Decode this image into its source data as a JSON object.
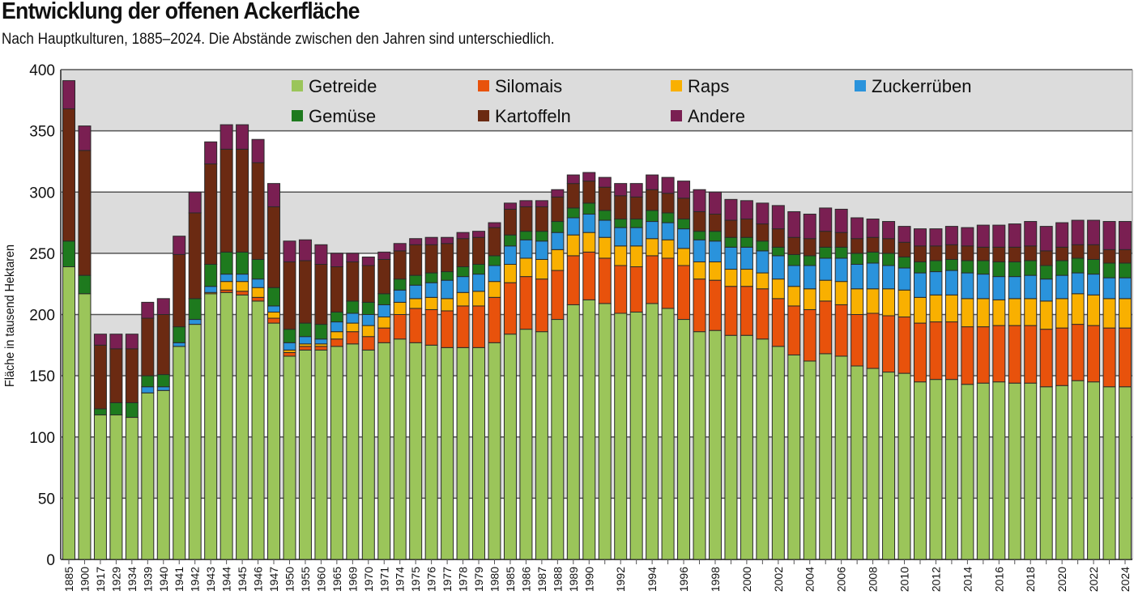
{
  "title": "Entwicklung der offenen Ackerfläche",
  "subtitle": "Nach Hauptkulturen, 1885–2024. Die Abstände zwischen den Jahren sind unterschiedlich.",
  "chart_data": {
    "type": "bar",
    "stacked": true,
    "ylabel": "Fläche in tausend Hektaren",
    "xlabel": "",
    "ylim": [
      0,
      400
    ],
    "yticks": [
      "0",
      "50",
      "100",
      "150",
      "200",
      "250",
      "300",
      "350",
      "400"
    ],
    "grid": true,
    "legend_position": "top-inside",
    "categories": [
      "1885",
      "1900",
      "1917",
      "1929",
      "1934",
      "1939",
      "1940",
      "1941",
      "1942",
      "1943",
      "1944",
      "1945",
      "1946",
      "1947",
      "1950",
      "1955",
      "1960",
      "1965",
      "1969",
      "1970",
      "1971",
      "1974",
      "1975",
      "1976",
      "1977",
      "1978",
      "1979",
      "1980",
      "1985",
      "1986",
      "1987",
      "1988",
      "1989",
      "1990",
      "",
      "1992",
      "",
      "1994",
      "",
      "1996",
      "",
      "1998",
      "",
      "2000",
      "",
      "2002",
      "",
      "2004",
      "",
      "2006",
      "",
      "2008",
      "",
      "2010",
      "",
      "2012",
      "",
      "2014",
      "",
      "2016",
      "",
      "2018",
      "",
      "2020",
      "",
      "2022",
      "",
      "2024"
    ],
    "series": [
      {
        "name": "Getreide",
        "color": "#9bc55a",
        "values": [
          239,
          217,
          118,
          118,
          116,
          136,
          138,
          174,
          192,
          217,
          218,
          216,
          211,
          193,
          166,
          171,
          171,
          174,
          176,
          171,
          177,
          180,
          177,
          175,
          173,
          173,
          173,
          177,
          184,
          188,
          186,
          196,
          208,
          212,
          209,
          201,
          202,
          209,
          205,
          196,
          186,
          187,
          183,
          183,
          180,
          174,
          167,
          162,
          168,
          166,
          158,
          156,
          153,
          152,
          145,
          147,
          147,
          143,
          144,
          145,
          144,
          144,
          141,
          142,
          146,
          145,
          141,
          141
        ]
      },
      {
        "name": "Silomais",
        "color": "#e8520c",
        "values": [
          0,
          0,
          0,
          0,
          0,
          0,
          0,
          0,
          0,
          0,
          2,
          3,
          3,
          4,
          3,
          3,
          3,
          6,
          10,
          11,
          12,
          20,
          28,
          29,
          30,
          34,
          34,
          37,
          42,
          43,
          43,
          40,
          40,
          39,
          37,
          39,
          37,
          39,
          41,
          44,
          43,
          41,
          40,
          40,
          41,
          39,
          40,
          42,
          43,
          42,
          42,
          45,
          46,
          46,
          48,
          47,
          47,
          47,
          46,
          46,
          47,
          47,
          47,
          47,
          46,
          46,
          48,
          48
        ]
      },
      {
        "name": "Raps",
        "color": "#f9b000",
        "values": [
          0,
          0,
          0,
          0,
          0,
          0,
          0,
          0,
          0,
          1,
          7,
          8,
          8,
          5,
          2,
          2,
          2,
          6,
          7,
          9,
          9,
          10,
          8,
          10,
          10,
          11,
          12,
          13,
          15,
          15,
          16,
          17,
          17,
          16,
          17,
          16,
          17,
          14,
          15,
          14,
          14,
          15,
          14,
          14,
          13,
          16,
          16,
          17,
          17,
          19,
          21,
          20,
          22,
          22,
          21,
          22,
          22,
          23,
          23,
          21,
          22,
          22,
          23,
          24,
          25,
          25,
          24,
          24
        ]
      },
      {
        "name": "Zuckerrüben",
        "color": "#2a93dc",
        "values": [
          0,
          0,
          0,
          0,
          0,
          5,
          3,
          3,
          4,
          5,
          6,
          6,
          7,
          5,
          6,
          6,
          4,
          8,
          8,
          9,
          10,
          10,
          11,
          12,
          15,
          13,
          14,
          13,
          15,
          15,
          15,
          14,
          14,
          15,
          14,
          15,
          15,
          14,
          14,
          16,
          18,
          17,
          18,
          18,
          18,
          19,
          17,
          19,
          18,
          19,
          20,
          21,
          19,
          18,
          20,
          19,
          20,
          21,
          20,
          19,
          18,
          19,
          18,
          19,
          17,
          17,
          17,
          17
        ]
      },
      {
        "name": "Gemüse",
        "color": "#1e7a1e",
        "values": [
          21,
          15,
          5,
          10,
          12,
          9,
          10,
          13,
          17,
          18,
          18,
          18,
          16,
          15,
          11,
          11,
          12,
          8,
          10,
          10,
          9,
          9,
          8,
          8,
          7,
          8,
          8,
          8,
          9,
          7,
          8,
          9,
          8,
          9,
          8,
          7,
          7,
          9,
          8,
          8,
          7,
          8,
          8,
          8,
          8,
          7,
          9,
          8,
          9,
          9,
          9,
          9,
          10,
          9,
          9,
          9,
          9,
          10,
          11,
          12,
          12,
          12,
          11,
          12,
          12,
          12,
          12,
          12
        ]
      },
      {
        "name": "Kartoffeln",
        "color": "#6b2a12",
        "values": [
          108,
          102,
          52,
          44,
          44,
          47,
          49,
          59,
          70,
          82,
          84,
          84,
          79,
          66,
          55,
          51,
          49,
          37,
          32,
          30,
          28,
          23,
          25,
          23,
          23,
          23,
          22,
          23,
          21,
          20,
          20,
          20,
          20,
          18,
          19,
          19,
          18,
          17,
          16,
          17,
          16,
          14,
          14,
          15,
          14,
          15,
          14,
          14,
          13,
          12,
          12,
          12,
          12,
          12,
          13,
          12,
          12,
          12,
          11,
          12,
          12,
          12,
          12,
          11,
          11,
          12,
          11,
          11
        ]
      },
      {
        "name": "Andere",
        "color": "#7a1f52",
        "values": [
          23,
          20,
          9,
          12,
          12,
          13,
          13,
          15,
          17,
          18,
          20,
          20,
          19,
          19,
          17,
          17,
          16,
          11,
          7,
          7,
          6,
          6,
          5,
          6,
          5,
          5,
          5,
          4,
          5,
          5,
          5,
          6,
          7,
          7,
          8,
          10,
          11,
          12,
          13,
          14,
          18,
          18,
          17,
          15,
          17,
          19,
          21,
          20,
          19,
          19,
          17,
          15,
          14,
          13,
          14,
          14,
          15,
          15,
          18,
          18,
          19,
          20,
          20,
          20,
          20,
          20,
          23,
          23
        ]
      }
    ]
  }
}
